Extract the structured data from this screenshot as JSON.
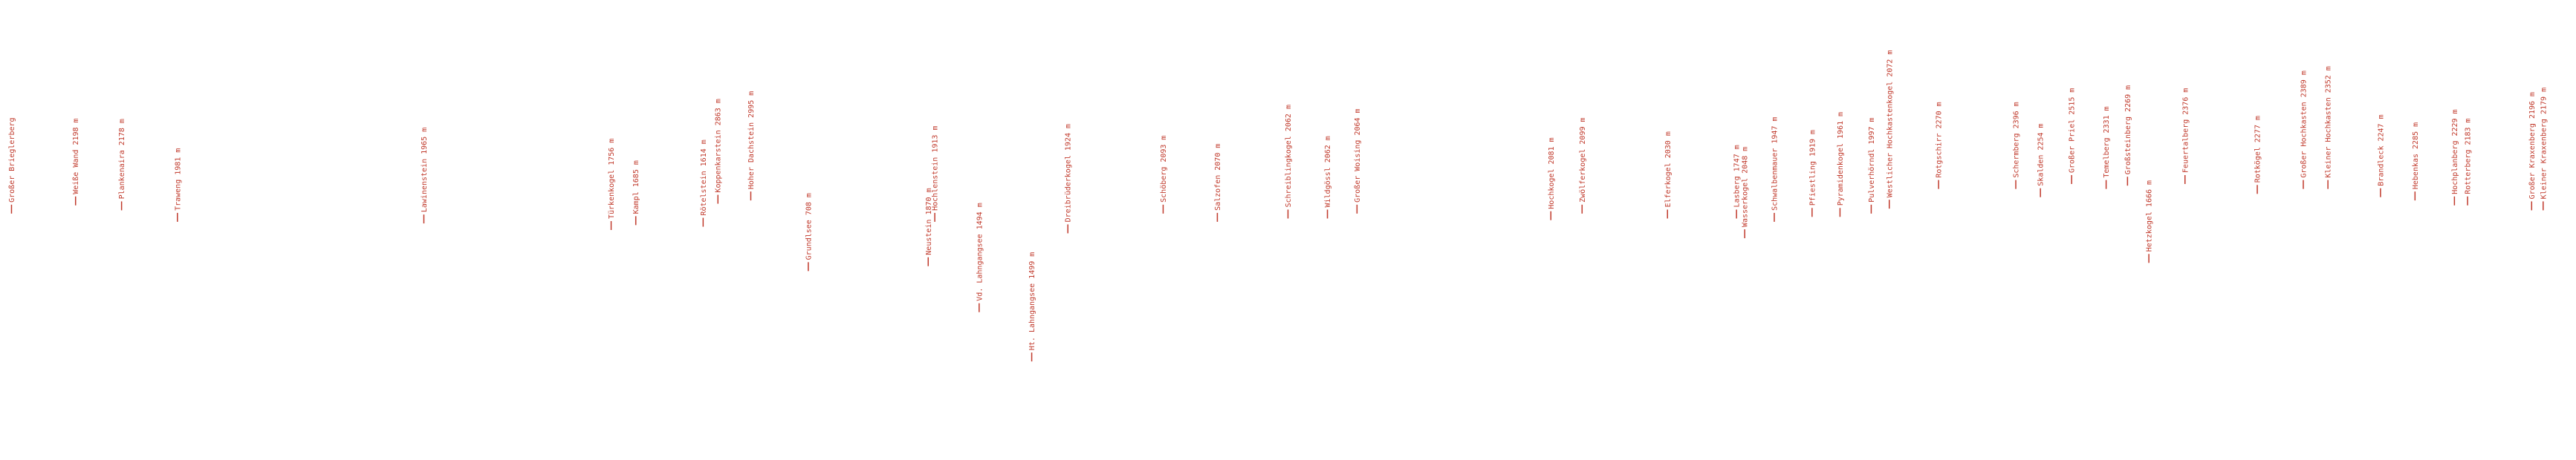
{
  "labels": [
    "Großer Brieglerberg",
    "Weiße Wand 2198 m",
    "Plankenaira 2178 m",
    "Traweng 1981 m",
    "Lawinenstein 1965 m",
    "Türkenkogel 1756 m",
    "Kampl 1685 m",
    "Rötelstein 1614 m",
    "Koppenkarstein 2863 m",
    "Hoher Dachstein 2995 m",
    "Grundlsee 708 m",
    "Neustein 1870 m",
    "Hochlenstein 1913 m",
    "Vd. Lahngangsee 1494 m",
    "Ht. Lahngangsee 1499 m",
    "Dreibrüderkogel 1924 m",
    "Schöberg 2093 m",
    "Salzofen 2070 m",
    "Schreiblingkogel 2062 m",
    "Wildgössl 2062 m",
    "Großer Woising 2064 m",
    "Hochkogel 2081 m",
    "Zwölferkogel 2099 m",
    "Elferkogel 2030 m",
    "Lasberg 1747 m",
    "Wasserkogel 2048 m",
    "Schwalbenmauer 1947 m",
    "Pfiestling 1919 m",
    "Pyramidenkogel 1961 m",
    "Pulverhörndl 1997 m",
    "Westlicher Hochkastenkogel 2072 m",
    "Rotgschirr 2270 m",
    "Schermberg 2396 m",
    "Skalden 2254 m",
    "Großer Priel 2515 m",
    "Temelberg 2331 m",
    "Großsteinberg 2269 m",
    "Hetzkogel 1666 m",
    "Feuertalberg 2376 m",
    "Rotkögel 2277 m",
    "Großer Hochkasten 2389 m",
    "Kleiner Hochkasten 2352 m",
    "Brandleck 2247 m",
    "Hebenkas 2285 m",
    "Hochplanberg 2229 m",
    "Rotterberg 2183 m",
    "Großer Kraxenberg 2196 m",
    "Kleiner Kraxenberg 2179 m"
  ]
}
